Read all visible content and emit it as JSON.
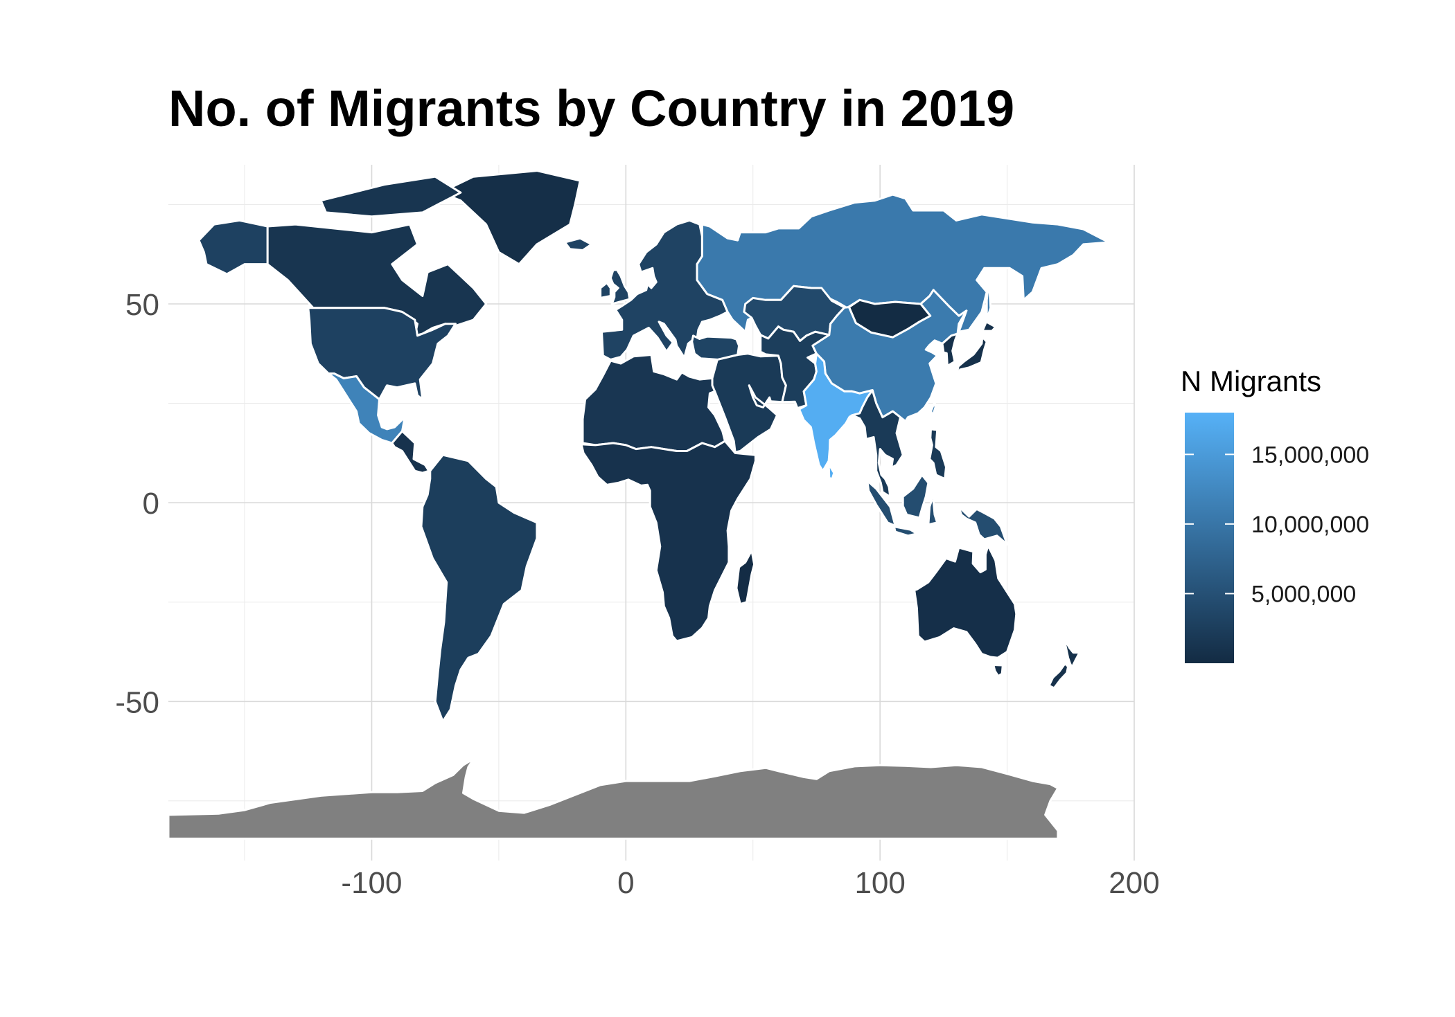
{
  "chart_data": {
    "type": "choropleth-map",
    "title": "No. of Migrants by Country in 2019",
    "xlabel": "",
    "ylabel": "",
    "xlim": [
      -180,
      200
    ],
    "ylim": [
      -90,
      85
    ],
    "x_ticks": [
      {
        "value": -100,
        "label": "-100"
      },
      {
        "value": 0,
        "label": "0"
      },
      {
        "value": 100,
        "label": "100"
      },
      {
        "value": 200,
        "label": "200"
      }
    ],
    "y_ticks": [
      {
        "value": 50,
        "label": "50"
      },
      {
        "value": 0,
        "label": "0"
      },
      {
        "value": -50,
        "label": "-50"
      }
    ],
    "grid": true,
    "legend": {
      "title": "N Migrants",
      "placement": "right",
      "min": 0,
      "max": 18000000,
      "low_color": "#132B43",
      "high_color": "#56B1F7",
      "breaks": [
        {
          "value": 5000000,
          "label": "5,000,000"
        },
        {
          "value": 10000000,
          "label": "10,000,000"
        },
        {
          "value": 15000000,
          "label": "15,000,000"
        }
      ]
    },
    "na_color": "#808080",
    "regions": [
      {
        "name": "Greenland",
        "value": 500000
      },
      {
        "name": "Canada",
        "value": 1300000
      },
      {
        "name": "United States",
        "value": 3000000
      },
      {
        "name": "Mexico",
        "value": 11800000
      },
      {
        "name": "Central America",
        "value": 1000000
      },
      {
        "name": "South America",
        "value": 2500000
      },
      {
        "name": "Europe",
        "value": 3200000
      },
      {
        "name": "Northern Africa",
        "value": 1500000
      },
      {
        "name": "Sub-Saharan Africa",
        "value": 1000000
      },
      {
        "name": "Madagascar",
        "value": 200000
      },
      {
        "name": "Middle East",
        "value": 2000000
      },
      {
        "name": "Turkey",
        "value": 3300000
      },
      {
        "name": "Russia",
        "value": 10500000
      },
      {
        "name": "Kazakhstan",
        "value": 4000000
      },
      {
        "name": "Central Asia",
        "value": 2500000
      },
      {
        "name": "Mongolia",
        "value": 100000
      },
      {
        "name": "China",
        "value": 10700000
      },
      {
        "name": "India",
        "value": 17500000
      },
      {
        "name": "Southeast Asia",
        "value": 2000000
      },
      {
        "name": "Indonesia",
        "value": 4500000
      },
      {
        "name": "Japan",
        "value": 800000
      },
      {
        "name": "Australia",
        "value": 600000
      },
      {
        "name": "New Zealand",
        "value": 800000
      },
      {
        "name": "Antarctica",
        "value": null
      }
    ]
  }
}
